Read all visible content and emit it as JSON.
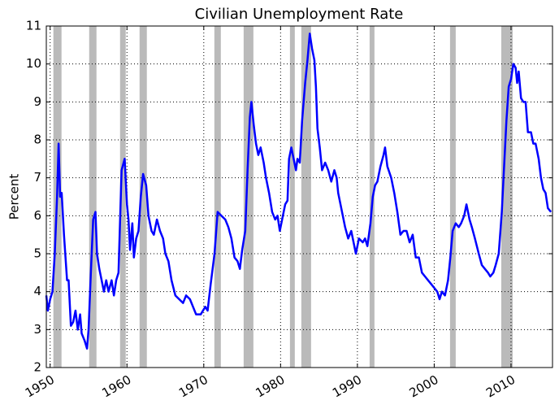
{
  "chart_data": {
    "type": "line",
    "title": "Civilian Unemployment Rate",
    "y_label": "Percent",
    "xlim": [
      1949.5,
      2015.4
    ],
    "xticks": [
      1950,
      1960,
      1970,
      1980,
      1990,
      2000,
      2010
    ],
    "ylim": [
      2,
      11
    ],
    "yticks": [
      2,
      3,
      4,
      5,
      6,
      7,
      8,
      9,
      10,
      11
    ],
    "grid": true,
    "color": "#0000ff",
    "recession_color": "#b3b3b3",
    "recessions": [
      [
        1950.42,
        1951.48
      ],
      [
        1955.08,
        1956.03
      ],
      [
        1959.1,
        1959.84
      ],
      [
        1961.64,
        1962.59
      ],
      [
        1971.38,
        1972.22
      ],
      [
        1975.19,
        1976.46
      ],
      [
        1981.22,
        1981.85
      ],
      [
        1982.7,
        1983.97
      ],
      [
        1991.59,
        1992.22
      ],
      [
        2002.06,
        2002.8
      ],
      [
        2008.73,
        2010.21
      ]
    ],
    "x": [
      1949.5,
      1949.7,
      1950.0,
      1950.3,
      1950.6,
      1950.9,
      1951.1,
      1951.3,
      1951.5,
      1951.8,
      1952.2,
      1952.4,
      1952.7,
      1953.0,
      1953.3,
      1953.6,
      1953.9,
      1954.1,
      1954.5,
      1954.8,
      1955.0,
      1955.3,
      1955.6,
      1955.9,
      1956.1,
      1956.4,
      1956.7,
      1957.0,
      1957.3,
      1957.6,
      1958.0,
      1958.3,
      1958.6,
      1958.9,
      1959.3,
      1959.7,
      1960.0,
      1960.2,
      1960.4,
      1960.7,
      1960.9,
      1961.2,
      1961.5,
      1961.8,
      1962.1,
      1962.5,
      1962.8,
      1963.2,
      1963.5,
      1963.9,
      1964.3,
      1964.7,
      1965.0,
      1965.4,
      1965.8,
      1966.3,
      1966.8,
      1967.3,
      1967.7,
      1968.2,
      1968.6,
      1969.0,
      1969.6,
      1970.2,
      1970.5,
      1970.9,
      1971.4,
      1971.8,
      1972.3,
      1972.8,
      1973.2,
      1973.6,
      1974.0,
      1974.4,
      1974.7,
      1975.0,
      1975.4,
      1975.7,
      1976.0,
      1976.2,
      1976.5,
      1976.8,
      1977.1,
      1977.4,
      1977.8,
      1978.1,
      1978.5,
      1978.9,
      1979.3,
      1979.6,
      1979.9,
      1980.2,
      1980.6,
      1980.9,
      1981.1,
      1981.4,
      1981.7,
      1982.0,
      1982.2,
      1982.5,
      1982.8,
      1983.2,
      1983.5,
      1983.8,
      1984.1,
      1984.4,
      1984.6,
      1984.8,
      1985.1,
      1985.4,
      1985.8,
      1986.2,
      1986.6,
      1987.0,
      1987.3,
      1987.5,
      1987.9,
      1988.4,
      1988.8,
      1989.2,
      1989.5,
      1989.8,
      1990.2,
      1990.7,
      1991.0,
      1991.3,
      1991.7,
      1992.0,
      1992.3,
      1992.6,
      1993.0,
      1993.4,
      1993.6,
      1993.9,
      1994.4,
      1994.8,
      1995.2,
      1995.6,
      1996.0,
      1996.4,
      1996.8,
      1997.2,
      1997.6,
      1998.0,
      1998.4,
      1998.8,
      1999.2,
      1999.6,
      2000.0,
      2000.4,
      2000.7,
      2001.0,
      2001.4,
      2001.8,
      2002.1,
      2002.4,
      2002.8,
      2003.2,
      2003.5,
      2003.9,
      2004.2,
      2004.6,
      2004.9,
      2005.3,
      2005.8,
      2006.2,
      2006.6,
      2007.0,
      2007.3,
      2007.7,
      2008.0,
      2008.4,
      2008.8,
      2009.1,
      2009.4,
      2009.7,
      2010.0,
      2010.3,
      2010.6,
      2010.8,
      2011.0,
      2011.3,
      2011.6,
      2011.9,
      2012.2,
      2012.6,
      2012.9,
      2013.2,
      2013.6,
      2013.9,
      2014.2,
      2014.5,
      2014.8,
      2015.2
    ],
    "values": [
      3.9,
      3.5,
      3.8,
      4.0,
      5.0,
      6.5,
      7.9,
      6.5,
      6.6,
      5.5,
      4.3,
      4.3,
      3.1,
      3.2,
      3.5,
      3.0,
      3.4,
      2.9,
      2.7,
      2.5,
      3.0,
      4.5,
      5.9,
      6.1,
      5.0,
      4.6,
      4.3,
      4.0,
      4.3,
      4.0,
      4.3,
      3.9,
      4.3,
      4.5,
      7.2,
      7.5,
      6.3,
      5.9,
      5.1,
      5.8,
      4.9,
      5.4,
      5.6,
      6.5,
      7.1,
      6.8,
      6.0,
      5.6,
      5.5,
      5.9,
      5.6,
      5.4,
      5.0,
      4.8,
      4.3,
      3.9,
      3.8,
      3.7,
      3.9,
      3.8,
      3.6,
      3.4,
      3.4,
      3.6,
      3.5,
      4.2,
      5.0,
      6.1,
      6.0,
      5.9,
      5.7,
      5.4,
      4.9,
      4.8,
      4.6,
      5.1,
      5.6,
      7.2,
      8.6,
      9.0,
      8.4,
      7.9,
      7.6,
      7.8,
      7.4,
      7.0,
      6.6,
      6.1,
      5.9,
      6.0,
      5.6,
      5.9,
      6.3,
      6.4,
      7.5,
      7.8,
      7.5,
      7.2,
      7.5,
      7.4,
      8.5,
      9.5,
      10.1,
      10.8,
      10.4,
      10.1,
      9.4,
      8.3,
      7.8,
      7.2,
      7.4,
      7.2,
      6.9,
      7.2,
      7.0,
      6.6,
      6.2,
      5.7,
      5.4,
      5.6,
      5.3,
      5.0,
      5.4,
      5.3,
      5.4,
      5.2,
      5.8,
      6.5,
      6.8,
      6.9,
      7.3,
      7.6,
      7.8,
      7.3,
      7.0,
      6.6,
      6.1,
      5.5,
      5.6,
      5.6,
      5.3,
      5.5,
      4.9,
      4.9,
      4.5,
      4.4,
      4.3,
      4.2,
      4.1,
      4.0,
      3.8,
      4.0,
      3.9,
      4.3,
      4.9,
      5.6,
      5.8,
      5.7,
      5.8,
      6.0,
      6.3,
      5.9,
      5.7,
      5.4,
      5.0,
      4.7,
      4.6,
      4.5,
      4.4,
      4.5,
      4.7,
      5.0,
      6.1,
      7.3,
      8.5,
      9.4,
      9.6,
      10.0,
      9.9,
      9.5,
      9.8,
      9.1,
      9.0,
      9.0,
      8.2,
      8.2,
      7.9,
      7.9,
      7.5,
      7.0,
      6.7,
      6.6,
      6.2,
      6.1
    ]
  }
}
